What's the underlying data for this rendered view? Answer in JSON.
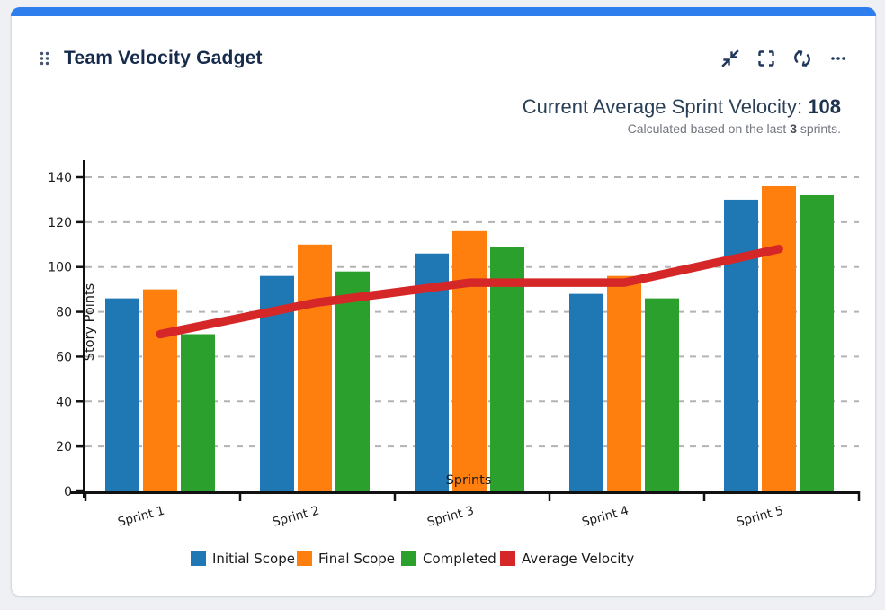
{
  "card": {
    "title": "Team Velocity Gadget",
    "accent_color": "#2E7FED"
  },
  "header_actions": [
    {
      "name": "collapse",
      "tooltip": "Collapse"
    },
    {
      "name": "fullscreen",
      "tooltip": "Full screen"
    },
    {
      "name": "refresh",
      "tooltip": "Refresh"
    },
    {
      "name": "more",
      "tooltip": "More options"
    }
  ],
  "summary": {
    "label": "Current Average Sprint Velocity: ",
    "value": "108",
    "note_prefix": "Calculated based on the last ",
    "note_bold": "3",
    "note_suffix": " sprints."
  },
  "chart_data": {
    "type": "bar",
    "categories": [
      "Sprint 1",
      "Sprint 2",
      "Sprint 3",
      "Sprint 4",
      "Sprint 5"
    ],
    "series": [
      {
        "name": "Initial Scope",
        "type": "bar",
        "color": "#1f77b4",
        "values": [
          86,
          96,
          106,
          88,
          130
        ]
      },
      {
        "name": "Final Scope",
        "type": "bar",
        "color": "#ff7f0e",
        "values": [
          90,
          110,
          116,
          96,
          136
        ]
      },
      {
        "name": "Completed",
        "type": "bar",
        "color": "#2ca02c",
        "values": [
          70,
          98,
          109,
          86,
          132
        ]
      },
      {
        "name": "Average Velocity",
        "type": "line",
        "color": "#d62728",
        "values": [
          70,
          84,
          93,
          93,
          108
        ]
      }
    ],
    "title": "",
    "xlabel": "Sprints",
    "ylabel": "Story Points",
    "ylim": [
      0,
      145
    ],
    "yticks": [
      0,
      20,
      40,
      60,
      80,
      100,
      120,
      140
    ],
    "grid": true,
    "legend_position": "bottom",
    "colors": {
      "grid": "#b3b3b3",
      "axis": "#111111",
      "text": "#1a1a1a"
    }
  }
}
